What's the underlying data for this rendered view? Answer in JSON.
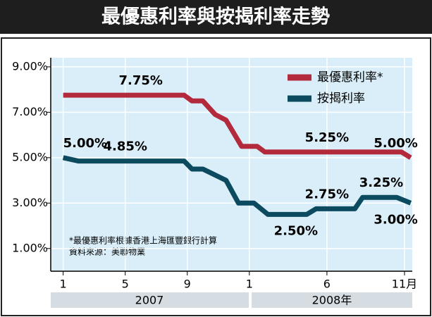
{
  "chart_data": {
    "type": "line",
    "title": "最優惠利率與按揭利率走勢",
    "xlim": [
      0.2,
      23.5
    ],
    "xticks": [
      1,
      5,
      9,
      {
        "value": 13,
        "label": "1"
      },
      {
        "value": 18,
        "label": "6"
      },
      {
        "value": 23,
        "label": "11月"
      }
    ],
    "year_labels": [
      "2007",
      "2008年"
    ],
    "ylim": [
      0,
      9.4
    ],
    "yticks": [
      {
        "value": 1,
        "label": "1.00%"
      },
      {
        "value": 3,
        "label": "3.00%"
      },
      {
        "value": 5,
        "label": "5.00%"
      },
      {
        "value": 7,
        "label": "7.00%"
      },
      {
        "value": 9,
        "label": "9.00%"
      }
    ],
    "grid": true,
    "legend": "upper right",
    "series": [
      {
        "name": "最優惠利率*",
        "color": "#b22a3c",
        "x": [
          1,
          6,
          8.8,
          9.3,
          10,
          10.8,
          11.5,
          12.5,
          13.5,
          14,
          18,
          22.8,
          23.4
        ],
        "values": [
          7.75,
          7.75,
          7.75,
          7.5,
          7.5,
          6.9,
          6.65,
          5.5,
          5.5,
          5.25,
          5.25,
          5.25,
          5.0
        ],
        "value_labels": [
          null,
          "7.75%",
          null,
          null,
          null,
          null,
          null,
          null,
          null,
          null,
          "5.25%",
          null,
          "5.00%"
        ]
      },
      {
        "name": "按揭利率",
        "color": "#0c4a5f",
        "x": [
          1,
          2,
          5,
          8.8,
          9.3,
          10,
          11.5,
          12.3,
          13.3,
          14.2,
          15,
          16,
          16.7,
          17.3,
          18,
          19.8,
          20.3,
          21.5,
          22.5,
          23.4
        ],
        "values": [
          5.0,
          4.85,
          4.85,
          4.85,
          4.5,
          4.5,
          4.0,
          3.0,
          3.0,
          2.5,
          2.5,
          2.5,
          2.5,
          2.75,
          2.75,
          2.75,
          3.25,
          3.25,
          3.25,
          3.0
        ],
        "value_labels": [
          "5.00%",
          null,
          "4.85%",
          null,
          null,
          null,
          null,
          null,
          null,
          null,
          null,
          "2.50%",
          null,
          null,
          "2.75%",
          null,
          null,
          "3.25%",
          null,
          "3.00%"
        ]
      }
    ],
    "notes": [
      "*最優惠利率根據香港上海匯豐銀行計算",
      "資料來源：美聯物業"
    ]
  }
}
